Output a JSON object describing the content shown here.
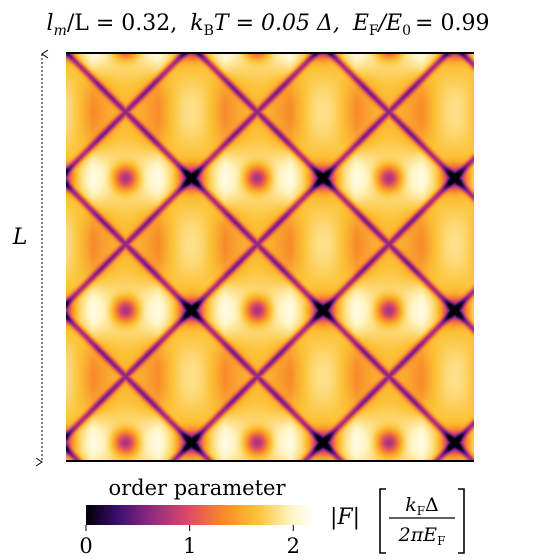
{
  "chart_data": {
    "type": "heatmap",
    "title": {
      "lm_sym": "l",
      "lm_sub": "m",
      "lm_den": "/L = 0.32,",
      "kb_sym": "k",
      "kb_sub": "B",
      "kb_rest": "T = 0.05 Δ,",
      "ef_sym": "E",
      "ef_sub": "F",
      "ef_den": "/E",
      "ef_den_sub": "0",
      "ef_val": "= 0.99"
    },
    "ylabel": "L",
    "colorbar": {
      "label": "order parameter",
      "quantity": "|F|",
      "unit_num_k": "k",
      "unit_num_k_sub": "F",
      "unit_num_delta": "Δ",
      "unit_den_pre": "2πE",
      "unit_den_sub": "F",
      "range": [
        0,
        2.2
      ],
      "ticks": [
        {
          "value": 0,
          "label": "0"
        },
        {
          "value": 1,
          "label": "1"
        },
        {
          "value": 2,
          "label": "2"
        }
      ],
      "colormap": "inferno",
      "colors": [
        "#000004",
        "#3b0f70",
        "#8c2981",
        "#dd4a68",
        "#f7892a",
        "#fcc235",
        "#fff5c4",
        "#ffffff"
      ]
    }
  }
}
